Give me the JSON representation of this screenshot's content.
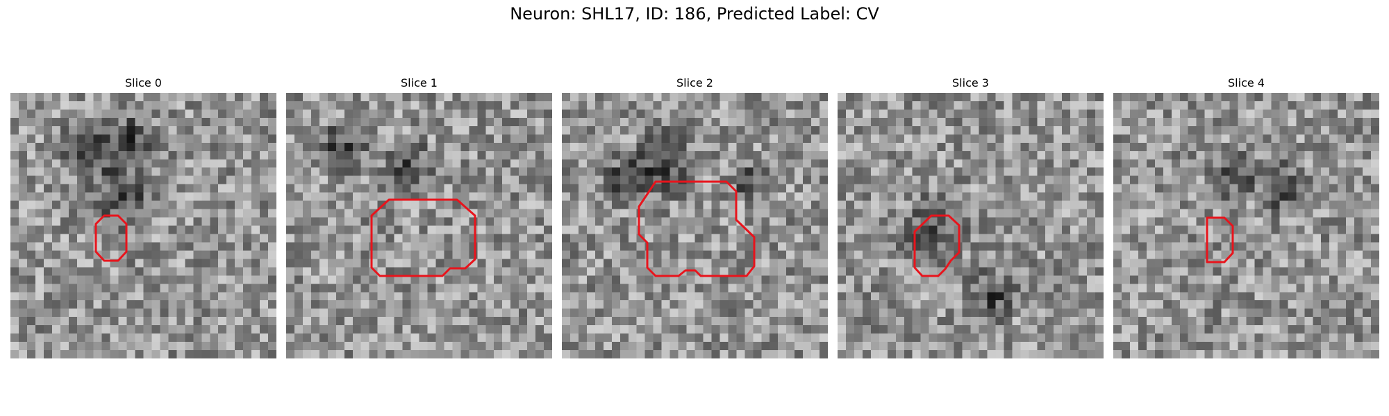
{
  "figure": {
    "title": "Neuron: SHL17, ID: 186, Predicted Label: CV"
  },
  "panels": [
    {
      "title": "Slice 0",
      "image": "grayscale microscopy slice with red ROI contour",
      "roi_color": "#ff0000"
    },
    {
      "title": "Slice 1",
      "image": "grayscale microscopy slice with red ROI contour",
      "roi_color": "#ff0000"
    },
    {
      "title": "Slice 2",
      "image": "grayscale microscopy slice with red ROI contour",
      "roi_color": "#ff0000"
    },
    {
      "title": "Slice 3",
      "image": "grayscale microscopy slice with red ROI contour",
      "roi_color": "#ff0000"
    },
    {
      "title": "Slice 4",
      "image": "grayscale microscopy slice with red ROI contour",
      "roi_color": "#ff0000"
    }
  ]
}
